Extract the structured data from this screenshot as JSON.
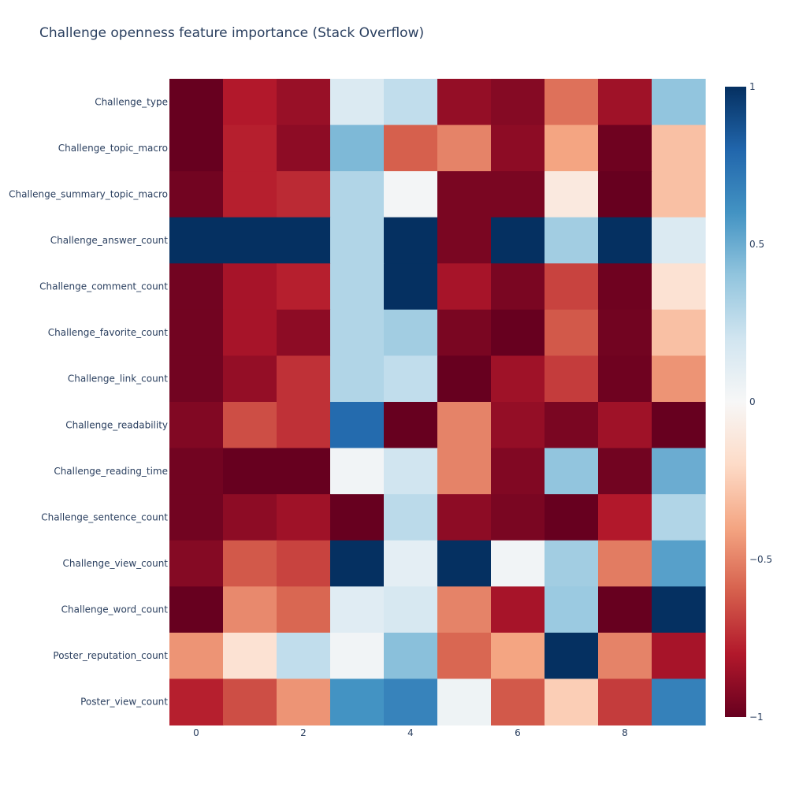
{
  "chart_data": {
    "type": "heatmap",
    "title": "Challenge openness feature importance (Stack Overflow)",
    "x": [
      0,
      1,
      2,
      3,
      4,
      5,
      6,
      7,
      8,
      9
    ],
    "x_tick_labels": [
      "0",
      "2",
      "4",
      "6",
      "8"
    ],
    "x_tick_values": [
      0,
      2,
      4,
      6,
      8
    ],
    "y": [
      "Challenge_type",
      "Challenge_topic_macro",
      "Challenge_summary_topic_macro",
      "Challenge_answer_count",
      "Challenge_comment_count",
      "Challenge_favorite_count",
      "Challenge_link_count",
      "Challenge_readability",
      "Challenge_reading_time",
      "Challenge_sentence_count",
      "Challenge_view_count",
      "Challenge_word_count",
      "Poster_reputation_count",
      "Poster_view_count"
    ],
    "z": [
      [
        -1.0,
        -0.8,
        -0.87,
        0.15,
        0.25,
        -0.88,
        -0.92,
        -0.55,
        -0.85,
        0.4
      ],
      [
        -1.0,
        -0.78,
        -0.9,
        0.45,
        -0.6,
        -0.5,
        -0.9,
        -0.4,
        -0.98,
        -0.3
      ],
      [
        -0.97,
        -0.78,
        -0.75,
        0.3,
        0.02,
        -0.95,
        -0.95,
        -0.1,
        -1.0,
        -0.3
      ],
      [
        1.0,
        1.0,
        1.0,
        0.3,
        1.0,
        -0.95,
        1.0,
        0.35,
        1.0,
        0.15
      ],
      [
        -0.97,
        -0.83,
        -0.78,
        0.3,
        1.0,
        -0.83,
        -0.95,
        -0.68,
        -0.98,
        -0.15
      ],
      [
        -0.97,
        -0.83,
        -0.9,
        0.3,
        0.35,
        -0.95,
        -1.0,
        -0.62,
        -0.97,
        -0.3
      ],
      [
        -0.97,
        -0.88,
        -0.73,
        0.3,
        0.25,
        -1.0,
        -0.85,
        -0.7,
        -0.98,
        -0.45
      ],
      [
        -0.93,
        -0.65,
        -0.73,
        0.78,
        -1.0,
        -0.5,
        -0.88,
        -0.95,
        -0.85,
        -1.0
      ],
      [
        -0.97,
        -1.0,
        -1.0,
        0.03,
        0.2,
        -0.5,
        -0.93,
        0.4,
        -0.97,
        0.5
      ],
      [
        -0.97,
        -0.9,
        -0.85,
        -1.0,
        0.27,
        -0.9,
        -0.95,
        -1.0,
        -0.8,
        0.3
      ],
      [
        -0.92,
        -0.62,
        -0.68,
        1.0,
        0.1,
        1.0,
        0.03,
        0.35,
        -0.52,
        0.55
      ],
      [
        -1.0,
        -0.48,
        -0.58,
        0.12,
        0.17,
        -0.5,
        -0.83,
        0.37,
        -1.0,
        1.0
      ],
      [
        -0.45,
        -0.15,
        0.25,
        0.03,
        0.42,
        -0.58,
        -0.4,
        1.0,
        -0.5,
        -0.83
      ],
      [
        -0.78,
        -0.65,
        -0.45,
        0.6,
        0.67,
        0.05,
        -0.62,
        -0.25,
        -0.7,
        0.68
      ]
    ],
    "zmin": -1,
    "zmax": 1,
    "colorscale": "RdBu",
    "colorbar_tick_labels": [
      "1",
      "0.5",
      "0",
      "−0.5",
      "−1"
    ],
    "colorbar_tick_values": [
      1,
      0.5,
      0,
      -0.5,
      -1
    ],
    "legend": "colorbar-right",
    "grid": false
  }
}
